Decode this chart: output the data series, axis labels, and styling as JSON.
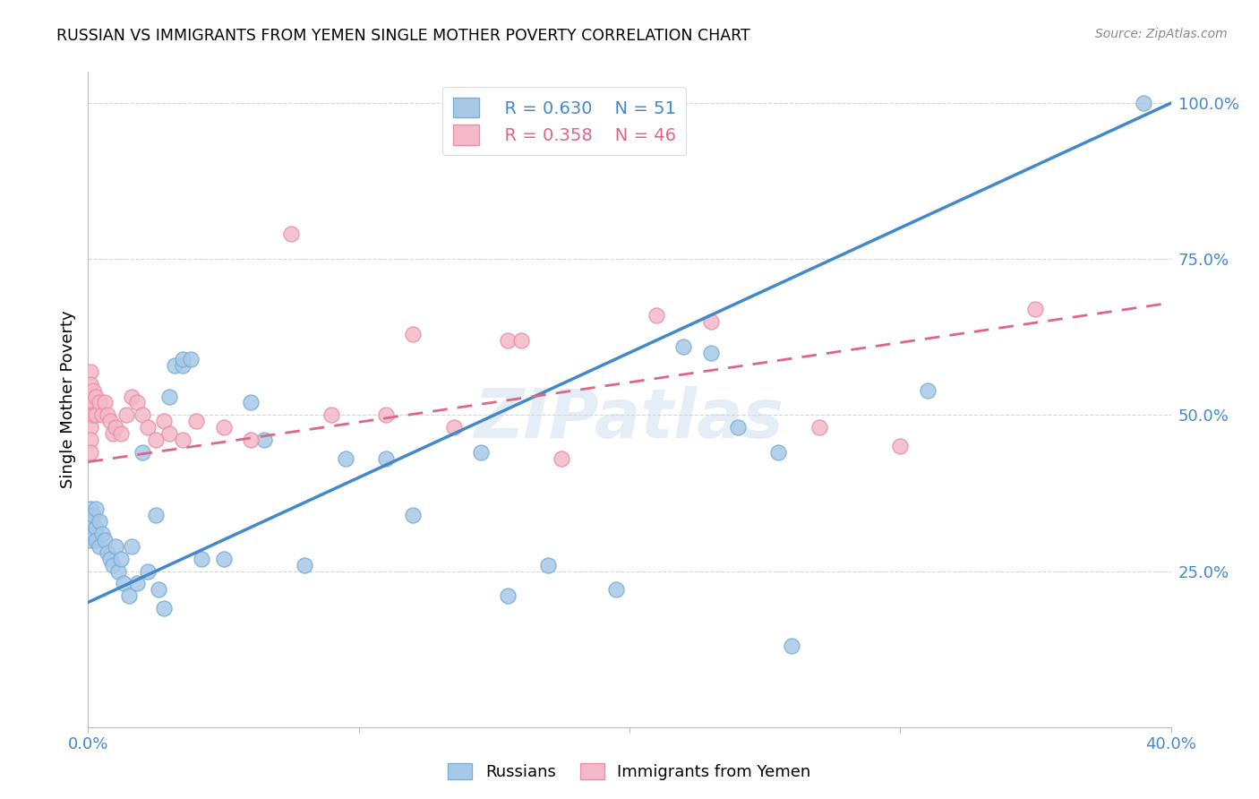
{
  "title": "RUSSIAN VS IMMIGRANTS FROM YEMEN SINGLE MOTHER POVERTY CORRELATION CHART",
  "source": "Source: ZipAtlas.com",
  "ylabel": "Single Mother Poverty",
  "xlim": [
    0.0,
    0.4
  ],
  "ylim": [
    0.0,
    1.05
  ],
  "ytick_labels": [
    "100.0%",
    "75.0%",
    "50.0%",
    "25.0%"
  ],
  "ytick_positions": [
    1.0,
    0.75,
    0.5,
    0.25
  ],
  "grid_color": "#cccccc",
  "background_color": "#ffffff",
  "watermark": "ZIPatlas",
  "russian_color": "#a8c8e8",
  "russian_edge": "#7aafd4",
  "yemen_color": "#f4b8c8",
  "yemen_edge": "#e890a8",
  "legend_r_russian": "0.630",
  "legend_n_russian": "51",
  "legend_r_yemen": "0.358",
  "legend_n_yemen": "46",
  "russian_points_x": [
    0.001,
    0.001,
    0.001,
    0.002,
    0.002,
    0.003,
    0.003,
    0.003,
    0.004,
    0.004,
    0.005,
    0.006,
    0.007,
    0.008,
    0.009,
    0.01,
    0.011,
    0.012,
    0.013,
    0.015,
    0.016,
    0.018,
    0.02,
    0.022,
    0.025,
    0.026,
    0.028,
    0.03,
    0.032,
    0.035,
    0.035,
    0.038,
    0.042,
    0.05,
    0.06,
    0.065,
    0.08,
    0.095,
    0.11,
    0.12,
    0.145,
    0.155,
    0.17,
    0.195,
    0.22,
    0.23,
    0.24,
    0.255,
    0.26,
    0.31,
    0.39
  ],
  "russian_points_y": [
    0.35,
    0.33,
    0.3,
    0.34,
    0.31,
    0.35,
    0.32,
    0.3,
    0.33,
    0.29,
    0.31,
    0.3,
    0.28,
    0.27,
    0.26,
    0.29,
    0.25,
    0.27,
    0.23,
    0.21,
    0.29,
    0.23,
    0.44,
    0.25,
    0.34,
    0.22,
    0.19,
    0.53,
    0.58,
    0.58,
    0.59,
    0.59,
    0.27,
    0.27,
    0.52,
    0.46,
    0.26,
    0.43,
    0.43,
    0.34,
    0.44,
    0.21,
    0.26,
    0.22,
    0.61,
    0.6,
    0.48,
    0.44,
    0.13,
    0.54,
    1.0
  ],
  "russian_line_x": [
    0.0,
    0.4
  ],
  "russian_line_y": [
    0.2,
    1.0
  ],
  "yemen_points_x": [
    0.001,
    0.001,
    0.001,
    0.001,
    0.001,
    0.001,
    0.001,
    0.001,
    0.002,
    0.002,
    0.002,
    0.003,
    0.003,
    0.004,
    0.005,
    0.006,
    0.007,
    0.008,
    0.009,
    0.01,
    0.012,
    0.014,
    0.016,
    0.018,
    0.02,
    0.022,
    0.025,
    0.028,
    0.03,
    0.035,
    0.04,
    0.05,
    0.06,
    0.075,
    0.09,
    0.11,
    0.12,
    0.135,
    0.155,
    0.16,
    0.175,
    0.21,
    0.23,
    0.27,
    0.3,
    0.35
  ],
  "yemen_points_y": [
    0.57,
    0.55,
    0.53,
    0.52,
    0.5,
    0.48,
    0.46,
    0.44,
    0.54,
    0.52,
    0.5,
    0.53,
    0.5,
    0.52,
    0.5,
    0.52,
    0.5,
    0.49,
    0.47,
    0.48,
    0.47,
    0.5,
    0.53,
    0.52,
    0.5,
    0.48,
    0.46,
    0.49,
    0.47,
    0.46,
    0.49,
    0.48,
    0.46,
    0.79,
    0.5,
    0.5,
    0.63,
    0.48,
    0.62,
    0.62,
    0.43,
    0.66,
    0.65,
    0.48,
    0.45,
    0.67
  ],
  "yemen_line_x": [
    0.0,
    0.4
  ],
  "yemen_line_y": [
    0.425,
    0.68
  ]
}
